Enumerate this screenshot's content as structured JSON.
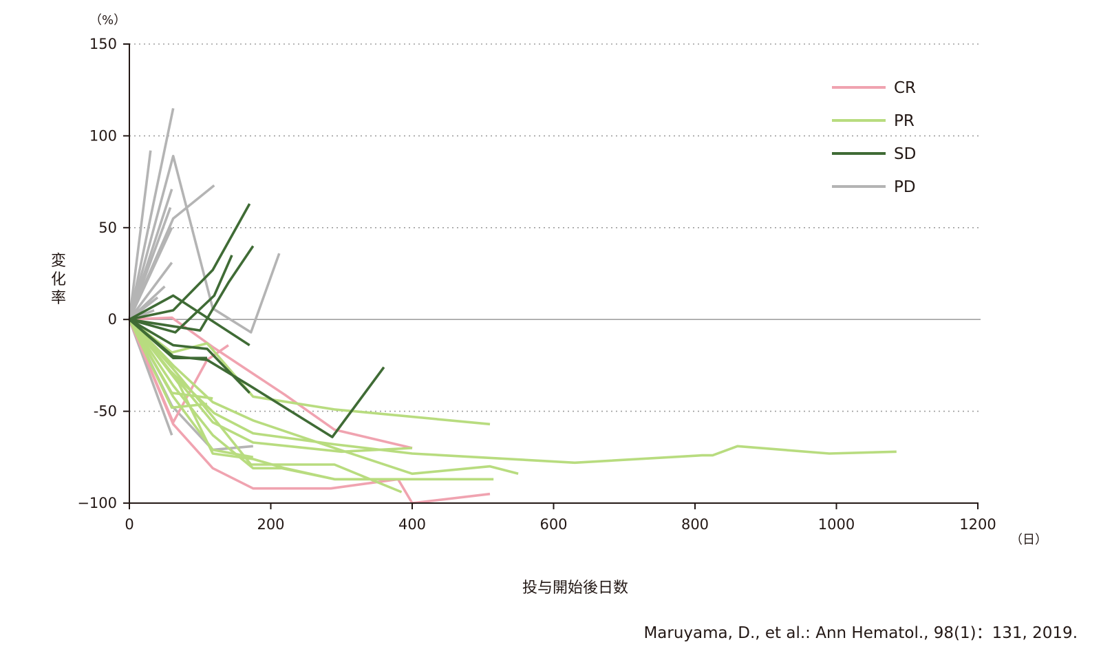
{
  "chart_data": {
    "type": "line",
    "title": "",
    "xlabel": "投与開始後日数",
    "x_unit": "（日）",
    "ylabel": "変化率",
    "y_unit": "（%）",
    "xlim": [
      0,
      1200
    ],
    "ylim": [
      -100,
      150
    ],
    "x_ticks": [
      0,
      200,
      400,
      600,
      800,
      1000,
      1200
    ],
    "y_ticks": [
      150,
      100,
      50,
      0,
      -50,
      -100
    ],
    "y_tick_labels": [
      "150",
      "100",
      "50",
      "0",
      "-50",
      "−100"
    ],
    "grid": "dotted horizontal at 150, 100, 50, -50; solid line at 0",
    "legend_position": "top-right",
    "categories": [
      {
        "name": "CR",
        "color": "#f0a3b0"
      },
      {
        "name": "PR",
        "color": "#b8dc7f"
      },
      {
        "name": "SD",
        "color": "#3f6b35"
      },
      {
        "name": "PD",
        "color": "#b4b4b4"
      }
    ],
    "series": [
      {
        "category": "PD",
        "x": [
          0,
          30
        ],
        "y": [
          0,
          92
        ]
      },
      {
        "category": "PD",
        "x": [
          0,
          62
        ],
        "y": [
          0,
          115
        ]
      },
      {
        "category": "PD",
        "x": [
          0,
          60
        ],
        "y": [
          0,
          71
        ]
      },
      {
        "category": "PD",
        "x": [
          0,
          58
        ],
        "y": [
          0,
          61
        ]
      },
      {
        "category": "PD",
        "x": [
          0,
          62,
          120
        ],
        "y": [
          0,
          55,
          73
        ]
      },
      {
        "category": "PD",
        "x": [
          0,
          60
        ],
        "y": [
          0,
          50
        ]
      },
      {
        "category": "PD",
        "x": [
          0,
          62,
          118,
          172,
          212
        ],
        "y": [
          0,
          89,
          6,
          -7,
          36
        ]
      },
      {
        "category": "PD",
        "x": [
          0,
          60
        ],
        "y": [
          0,
          31
        ]
      },
      {
        "category": "PD",
        "x": [
          0,
          50
        ],
        "y": [
          0,
          18
        ]
      },
      {
        "category": "PD",
        "x": [
          0,
          40
        ],
        "y": [
          0,
          12
        ]
      },
      {
        "category": "PD",
        "x": [
          0,
          35
        ],
        "y": [
          0,
          5
        ]
      },
      {
        "category": "PD",
        "x": [
          0,
          60
        ],
        "y": [
          0,
          -63
        ]
      },
      {
        "category": "PD",
        "x": [
          0,
          60,
          118,
          175
        ],
        "y": [
          0,
          -47,
          -71,
          -69
        ]
      },
      {
        "category": "SD",
        "x": [
          0,
          62,
          118,
          170
        ],
        "y": [
          0,
          13,
          -1,
          -14
        ]
      },
      {
        "category": "SD",
        "x": [
          0,
          62,
          118,
          170
        ],
        "y": [
          0,
          5,
          27,
          63
        ]
      },
      {
        "category": "SD",
        "x": [
          0,
          65,
          120,
          145
        ],
        "y": [
          0,
          -7,
          13,
          35
        ]
      },
      {
        "category": "SD",
        "x": [
          0,
          100,
          140,
          175
        ],
        "y": [
          0,
          -6,
          20,
          40
        ]
      },
      {
        "category": "SD",
        "x": [
          0,
          62,
          110,
          170
        ],
        "y": [
          0,
          -14,
          -16,
          -40
        ]
      },
      {
        "category": "SD",
        "x": [
          0,
          62,
          110,
          170,
          287,
          360
        ],
        "y": [
          0,
          -20,
          -22,
          -36,
          -64,
          -26
        ]
      },
      {
        "category": "SD",
        "x": [
          0,
          62,
          110
        ],
        "y": [
          0,
          -21,
          -21
        ]
      },
      {
        "category": "CR",
        "x": [
          0,
          60,
          118,
          220,
          290,
          400
        ],
        "y": [
          0,
          1,
          -15,
          -41,
          -60,
          -70
        ]
      },
      {
        "category": "CR",
        "x": [
          0,
          62,
          110,
          140
        ],
        "y": [
          0,
          -56,
          -22,
          -14
        ]
      },
      {
        "category": "CR",
        "x": [
          0,
          62,
          118,
          175,
          285,
          380,
          400,
          510
        ],
        "y": [
          0,
          -57,
          -81,
          -92,
          -92,
          -87,
          -100,
          -95
        ]
      },
      {
        "category": "PR",
        "x": [
          0,
          60,
          110,
          175,
          290,
          510
        ],
        "y": [
          0,
          -18,
          -13,
          -42,
          -49,
          -57
        ]
      },
      {
        "category": "PR",
        "x": [
          0,
          60,
          118
        ],
        "y": [
          0,
          -40,
          -43
        ]
      },
      {
        "category": "PR",
        "x": [
          0,
          55,
          120,
          175,
          290,
          400,
          630,
          810,
          825,
          860,
          990,
          1085
        ],
        "y": [
          0,
          -27,
          -51,
          -62,
          -68,
          -73,
          -78,
          -74,
          -74,
          -69,
          -73,
          -72
        ]
      },
      {
        "category": "PR",
        "x": [
          0,
          62,
          118,
          175,
          290,
          400,
          510,
          550
        ],
        "y": [
          0,
          -25,
          -45,
          -55,
          -70,
          -84,
          -80,
          -84
        ]
      },
      {
        "category": "PR",
        "x": [
          0,
          62,
          118,
          172,
          290,
          385
        ],
        "y": [
          0,
          -27,
          -53,
          -79,
          -79,
          -94
        ]
      },
      {
        "category": "PR",
        "x": [
          0,
          62,
          118,
          175,
          300,
          400
        ],
        "y": [
          0,
          -30,
          -56,
          -67,
          -72,
          -70
        ]
      },
      {
        "category": "PR",
        "x": [
          0,
          70,
          118,
          175,
          220,
          290,
          515
        ],
        "y": [
          0,
          -35,
          -73,
          -76,
          -81,
          -87,
          -87
        ]
      },
      {
        "category": "PR",
        "x": [
          0,
          62,
          118,
          175,
          215,
          290,
          340
        ],
        "y": [
          0,
          -36,
          -63,
          -81,
          -81,
          -87,
          -87
        ]
      },
      {
        "category": "PR",
        "x": [
          0,
          62,
          118,
          175
        ],
        "y": [
          0,
          -42,
          -71,
          -75
        ]
      },
      {
        "category": "PR",
        "x": [
          0,
          60,
          110
        ],
        "y": [
          0,
          -48,
          -46
        ]
      }
    ]
  },
  "citation": "Maruyama, D., et al.: Ann Hematol., 98(1)：131, 2019."
}
